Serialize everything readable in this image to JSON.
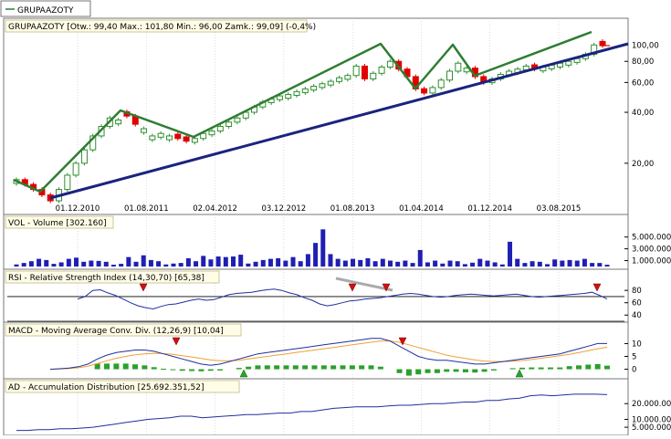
{
  "legend_tab": {
    "label": "GRUPAAZOTY",
    "color": "#2e7d32"
  },
  "colors": {
    "up_candle": "#2f8f2f",
    "down_candle": "#e00000",
    "trend_green": "#2e7d32",
    "trend_navy": "#1a237e",
    "volume_bar": "#1f1fb4",
    "rsi_line": "#1f2f9f",
    "macd_line": "#1f2f9f",
    "macd_signal": "#f0a030",
    "macd_hist": "#2aa02a",
    "ad_line": "#1f2f9f",
    "signal_down": "#d01010",
    "signal_up": "#30a030"
  },
  "chart_data": [
    {
      "type": "candlestick",
      "name": "price",
      "title": "GRUPAAZOTY [Otw.: 99,40  Max.: 101,80  Min.: 96,00  Zamk.: 99,09] (-0,4%)",
      "y_scale": "log",
      "ylim": [
        12,
        115
      ],
      "y_ticks": [
        {
          "v": 100,
          "label": "100,00"
        },
        {
          "v": 80,
          "label": "80,00"
        },
        {
          "v": 60,
          "label": "60,00"
        },
        {
          "v": 40,
          "label": "40,00"
        },
        {
          "v": 20,
          "label": "20,00"
        }
      ],
      "x_ticks": [
        "01.12.2010",
        "01.08.2011",
        "02.04.2012",
        "03.12.2012",
        "01.08.2013",
        "01.04.2014",
        "01.12.2014",
        "03.08.2015"
      ],
      "close": [
        16,
        15,
        14,
        13,
        12,
        14,
        17,
        20,
        24,
        29,
        33,
        37,
        36,
        38,
        34,
        32,
        29,
        30,
        29,
        28,
        27,
        28,
        30,
        31,
        33,
        35,
        37,
        40,
        43,
        46,
        48,
        50,
        51,
        53,
        55,
        57,
        59,
        61,
        64,
        66,
        75,
        63,
        68,
        74,
        80,
        72,
        65,
        55,
        52,
        56,
        62,
        70,
        78,
        73,
        65,
        60,
        63,
        67,
        70,
        72,
        75,
        72,
        74,
        76,
        78,
        80,
        83,
        88,
        100,
        99
      ],
      "down_candles": [
        1,
        2,
        3,
        4,
        13,
        14,
        19,
        20,
        41,
        45,
        46,
        47,
        48,
        54,
        55,
        61,
        69
      ]
    },
    {
      "type": "bar",
      "name": "volume",
      "title": "VOL - Volume [302.160]",
      "ylim": [
        0,
        6500000
      ],
      "y_ticks": [
        {
          "v": 5000000,
          "label": "5.000.000"
        },
        {
          "v": 3000000,
          "label": "3.000.000"
        },
        {
          "v": 1000000,
          "label": "1.000.000"
        }
      ],
      "values": [
        350000,
        600000,
        900000,
        1300000,
        1100000,
        450000,
        700000,
        1300000,
        1500000,
        800000,
        1000000,
        950000,
        800000,
        300000,
        450000,
        1600000,
        800000,
        1900000,
        1100000,
        900000,
        350000,
        500000,
        600000,
        1400000,
        900000,
        1800000,
        1200000,
        1700000,
        1600000,
        1700000,
        2000000,
        500000,
        800000,
        1100000,
        1300000,
        1400000,
        1000000,
        1600000,
        900000,
        2100000,
        4000000,
        6300000,
        2100000,
        1300000,
        1000000,
        1300000,
        1100000,
        1400000,
        900000,
        1300000,
        1000000,
        800000,
        1000000,
        600000,
        2800000,
        700000,
        1000000,
        500000,
        1000000,
        900000,
        400000,
        650000,
        1300000,
        1000000,
        700000,
        350000,
        4200000,
        1300000,
        600000,
        900000,
        800000,
        400000,
        1200000,
        1000000,
        1100000,
        1000000,
        1300000,
        600000,
        600000,
        300000
      ]
    },
    {
      "type": "line",
      "name": "rsi",
      "title": "RSI - Relative Strength Index (14,30,70) [65,38]",
      "ylim": [
        30,
        95
      ],
      "levels": [
        70,
        30
      ],
      "y_ticks": [
        {
          "v": 80,
          "label": "80"
        },
        {
          "v": 60,
          "label": "60"
        },
        {
          "v": 40,
          "label": "40"
        }
      ],
      "x_index": [
        10,
        12,
        14,
        16,
        18,
        20,
        22,
        24,
        26,
        28,
        30,
        32,
        34,
        36,
        38,
        40,
        42,
        44,
        46,
        48,
        50,
        52,
        54,
        56,
        58,
        60,
        62,
        64,
        66,
        68,
        70,
        72,
        74,
        76,
        78,
        80,
        82,
        84,
        86,
        88,
        90,
        92,
        94,
        96,
        98,
        100,
        102,
        104,
        106,
        108,
        110,
        112,
        114,
        116,
        118,
        120,
        122,
        124,
        126,
        128,
        130,
        132,
        134,
        136,
        138,
        140,
        142,
        144,
        146,
        148,
        150
      ],
      "values": [
        66,
        70,
        80,
        81,
        76,
        72,
        66,
        60,
        55,
        52,
        50,
        54,
        57,
        58,
        61,
        64,
        66,
        64,
        65,
        69,
        73,
        75,
        76,
        77,
        79,
        81,
        82,
        80,
        76,
        73,
        68,
        64,
        58,
        55,
        57,
        60,
        63,
        64,
        66,
        67,
        68,
        70,
        72,
        74,
        75,
        74,
        72,
        70,
        69,
        70,
        72,
        73,
        74,
        73,
        72,
        71,
        72,
        73,
        74,
        72,
        70,
        69,
        70,
        71,
        72,
        73,
        74,
        75,
        77,
        72,
        66
      ]
    },
    {
      "type": "line",
      "name": "macd",
      "title": "MACD - Moving Average Conv. Div. (12,26,9) [10,04]",
      "ylim": [
        -3,
        13
      ],
      "y_ticks": [
        {
          "v": 10,
          "label": "10"
        },
        {
          "v": 5,
          "label": "5"
        },
        {
          "v": 0,
          "label": "0"
        }
      ],
      "series": [
        {
          "name": "MACD",
          "values": [
            0,
            0.2,
            0.5,
            1,
            2,
            4,
            5.5,
            6.5,
            7,
            7.5,
            7.5,
            7,
            6,
            5,
            4,
            3,
            2,
            1.5,
            2,
            3,
            4,
            5,
            6,
            6.5,
            7,
            7.5,
            8,
            8.5,
            9,
            9.5,
            10,
            10.5,
            11,
            11.5,
            12,
            12,
            11,
            9,
            7,
            5,
            4,
            3.5,
            3.5,
            3,
            2.5,
            2,
            2,
            2.5,
            3,
            3.5,
            4,
            4.5,
            5,
            5.5,
            6,
            7,
            8,
            9,
            10,
            10
          ]
        },
        {
          "name": "Signal",
          "values": [
            0,
            0.1,
            0.3,
            0.6,
            1.2,
            2.2,
            3.3,
            4.3,
            5,
            5.6,
            6,
            6.2,
            6.1,
            5.8,
            5.3,
            4.8,
            4.2,
            3.6,
            3.3,
            3.3,
            3.5,
            4,
            4.5,
            5,
            5.5,
            6,
            6.5,
            7,
            7.5,
            8,
            8.5,
            9,
            9.5,
            10,
            10.5,
            11,
            11,
            10.5,
            9.5,
            8.5,
            7.5,
            6.5,
            5.5,
            4.8,
            4.2,
            3.6,
            3.2,
            3,
            3,
            3.1,
            3.4,
            3.8,
            4.3,
            4.8,
            5.3,
            5.8,
            6.5,
            7.2,
            8,
            8.6
          ]
        }
      ],
      "histogram": [
        0,
        0,
        0,
        0,
        0,
        2.2,
        2.2,
        2.2,
        2.2,
        1.9,
        1.5,
        0.8,
        0.2,
        -0.3,
        -0.6,
        -0.7,
        -0.8,
        -0.6,
        -0.5,
        0,
        0.5,
        1,
        1.5,
        1.5,
        1.5,
        1.5,
        1.5,
        1.5,
        1.5,
        1.5,
        1.5,
        1.5,
        1.5,
        1.5,
        1.5,
        1,
        0,
        -1.5,
        -2.5,
        -2,
        -1.5,
        -1.5,
        -1,
        -1,
        -1.2,
        -1.3,
        -1,
        -0.5,
        0,
        0.4,
        0.6,
        0.7,
        0.7,
        0.7,
        0.7,
        1.2,
        1.5,
        1.8,
        2,
        1.4
      ]
    },
    {
      "type": "line",
      "name": "ad",
      "title": "AD - Accumulation Distribution [25.692.351,52]",
      "ylim": [
        1000000,
        30000000
      ],
      "y_ticks": [
        {
          "v": 20000000,
          "label": "20.000.000"
        },
        {
          "v": 10000000,
          "label": "10.000.000"
        },
        {
          "v": 5000000,
          "label": "5.000.000"
        }
      ],
      "values": [
        3000000,
        3000000,
        3500000,
        3500000,
        4000000,
        4000000,
        4500000,
        5000000,
        6000000,
        7000000,
        8000000,
        9000000,
        10000000,
        10500000,
        11000000,
        12000000,
        12000000,
        11000000,
        11500000,
        12000000,
        12500000,
        13000000,
        13000000,
        13500000,
        14000000,
        14000000,
        15000000,
        15000000,
        16000000,
        17000000,
        17500000,
        18000000,
        18000000,
        18000000,
        18500000,
        19000000,
        19000000,
        19500000,
        20000000,
        20000000,
        20500000,
        21000000,
        21000000,
        22000000,
        22000000,
        23000000,
        23500000,
        25000000,
        25500000,
        25000000,
        25500000,
        26000000,
        26000000,
        26000000,
        25700000
      ]
    }
  ]
}
